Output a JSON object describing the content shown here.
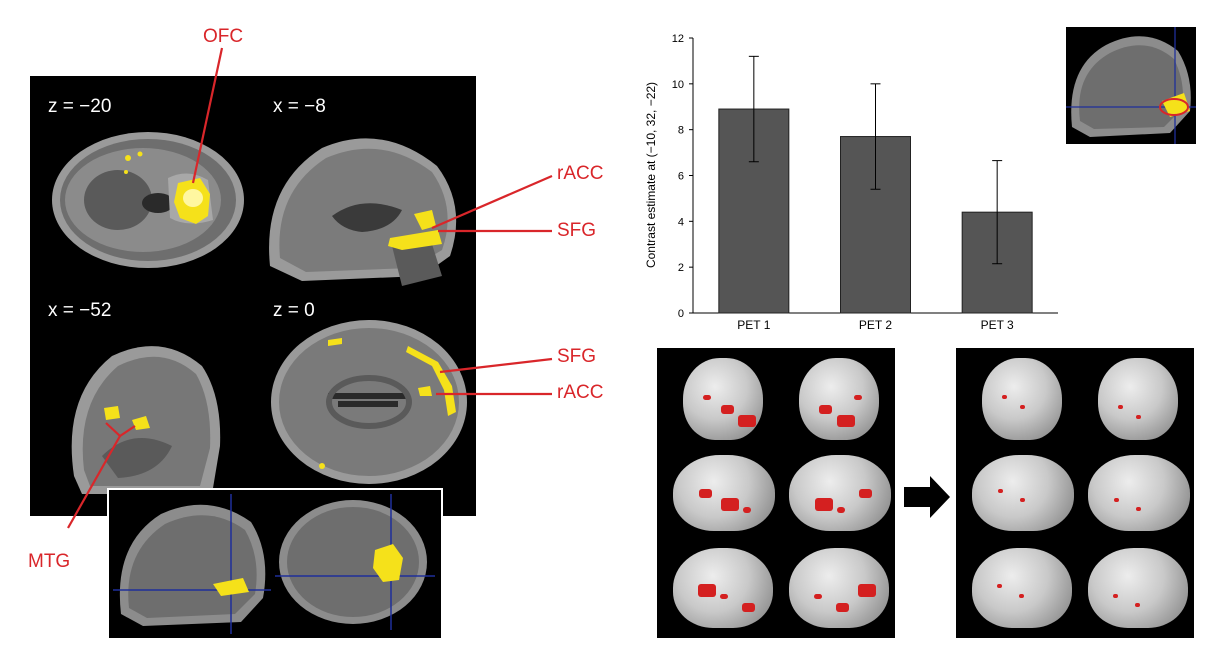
{
  "left_panel": {
    "slice_labels": [
      "z = −20",
      "x = −8",
      "x = −52",
      "z = 0"
    ],
    "region_labels": {
      "ofc": "OFC",
      "racc_top": "rACC",
      "sfg_top": "SFG",
      "sfg_bottom": "SFG",
      "racc_bottom": "rACC",
      "mtg": "MTG"
    },
    "colors": {
      "activation": "#f5e11a",
      "label": "#d9262a",
      "crosshair": "#1f2f9a"
    }
  },
  "chart_data": {
    "type": "bar",
    "categories": [
      "PET 1",
      "PET 2",
      "PET 3"
    ],
    "values": [
      8.9,
      7.7,
      4.4
    ],
    "error": [
      2.3,
      2.3,
      2.25
    ],
    "ylabel": "Contrast estimate at (−10, 32, −22)",
    "yticks": [
      "0",
      "2",
      "4",
      "6",
      "8",
      "10",
      "12"
    ],
    "ylim": [
      0,
      12
    ],
    "bar_color": "#555555",
    "grid": false
  },
  "bottom_right": {
    "transition_icon": "right-arrow-icon",
    "colors": {
      "activation": "#d42020",
      "brain": "#c9c9c9"
    }
  }
}
